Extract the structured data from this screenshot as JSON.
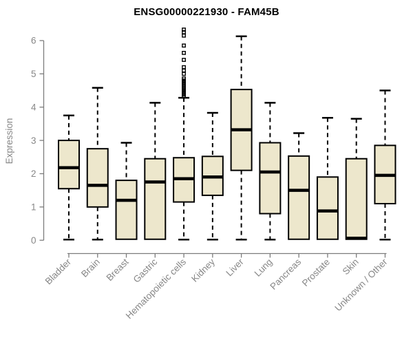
{
  "colors": {
    "box_fill": "#EDE7CC",
    "box_border": "#000000",
    "median": "#000000",
    "whisker": "#000000",
    "axis": "#7C7C7C",
    "axis_text": "#878787",
    "title_text": "#000000",
    "background": "#FFFFFF"
  },
  "chart_data": {
    "type": "box",
    "title": "ENSG00000221930 - FAM45B",
    "ylabel": "Expression",
    "xlabel": "",
    "ylim": [
      0,
      6.4
    ],
    "yticks": [
      0,
      1,
      2,
      3,
      4,
      5,
      6
    ],
    "grid": false,
    "legend": "none",
    "x_label_rotation_deg": 45,
    "categories": [
      "Bladder",
      "Brain",
      "Breast",
      "Gastric",
      "Hematopoietic cells",
      "Kidney",
      "Liver",
      "Lung",
      "Pancreas",
      "Prostate",
      "Skin",
      "Unknown / Other"
    ],
    "series": [
      {
        "label": "Bladder",
        "low": 0.02,
        "q1": 1.55,
        "median": 2.18,
        "q3": 3.0,
        "high": 3.75,
        "outliers": []
      },
      {
        "label": "Brain",
        "low": 0.02,
        "q1": 1.0,
        "median": 1.65,
        "q3": 2.75,
        "high": 4.58,
        "outliers": []
      },
      {
        "label": "Breast",
        "low": 0.02,
        "q1": 0.03,
        "median": 1.2,
        "q3": 1.8,
        "high": 2.93,
        "outliers": []
      },
      {
        "label": "Gastric",
        "low": 0.02,
        "q1": 0.03,
        "median": 1.75,
        "q3": 2.45,
        "high": 4.13,
        "outliers": []
      },
      {
        "label": "Hematopoietic cells",
        "low": 0.02,
        "q1": 1.15,
        "median": 1.85,
        "q3": 2.48,
        "high": 4.28,
        "outliers": [
          4.32,
          4.38,
          4.44,
          4.5,
          4.56,
          4.62,
          4.68,
          4.74,
          4.8,
          4.86,
          5.0,
          5.1,
          5.2,
          5.42,
          5.63,
          5.85,
          6.15,
          6.25,
          6.33
        ]
      },
      {
        "label": "Kidney",
        "low": 0.02,
        "q1": 1.35,
        "median": 1.9,
        "q3": 2.52,
        "high": 3.83,
        "outliers": []
      },
      {
        "label": "Liver",
        "low": 0.02,
        "q1": 2.1,
        "median": 3.32,
        "q3": 4.53,
        "high": 6.13,
        "outliers": []
      },
      {
        "label": "Lung",
        "low": 0.02,
        "q1": 0.8,
        "median": 2.05,
        "q3": 2.93,
        "high": 4.13,
        "outliers": []
      },
      {
        "label": "Pancreas",
        "low": 0.02,
        "q1": 0.03,
        "median": 1.5,
        "q3": 2.53,
        "high": 3.22,
        "outliers": []
      },
      {
        "label": "Prostate",
        "low": 0.02,
        "q1": 0.03,
        "median": 0.88,
        "q3": 1.9,
        "high": 3.68,
        "outliers": []
      },
      {
        "label": "Skin",
        "low": 0.02,
        "q1": 0.03,
        "median": 0.06,
        "q3": 2.45,
        "high": 3.65,
        "outliers": []
      },
      {
        "label": "Unknown / Other",
        "low": 0.02,
        "q1": 1.1,
        "median": 1.95,
        "q3": 2.85,
        "high": 4.5,
        "outliers": []
      }
    ]
  }
}
